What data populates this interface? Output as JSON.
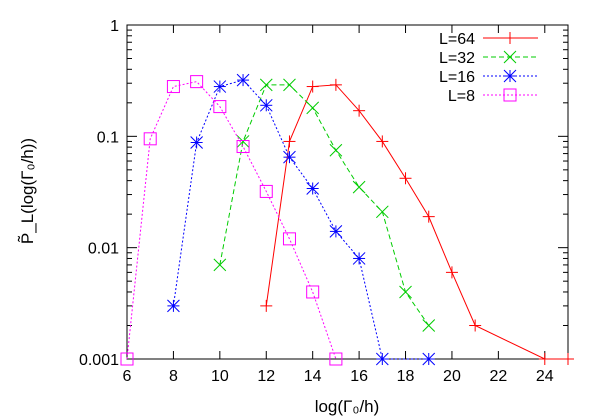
{
  "chart_data": {
    "type": "line",
    "xlabel": "log(Γ₀/h)",
    "ylabel": "P̃_L(log(Γ₀/h))",
    "xlim": [
      6,
      25
    ],
    "ylim": [
      0.001,
      1
    ],
    "yscale": "log",
    "grid": false,
    "legend_position": "top-right",
    "x_ticks": [
      6,
      8,
      10,
      12,
      14,
      16,
      18,
      20,
      22,
      24
    ],
    "x_tick_labels": [
      "6",
      "8",
      "10",
      "12",
      "14",
      "16",
      "18",
      "20",
      "22",
      "24"
    ],
    "y_ticks": [
      0.001,
      0.01,
      0.1,
      1
    ],
    "y_tick_labels": [
      "0.001",
      "0.01",
      "0.1",
      "1"
    ],
    "series": [
      {
        "name": "L=64",
        "color": "#ff0000",
        "marker": "plus",
        "dash": "solid",
        "x": [
          12,
          13,
          14,
          15,
          16,
          17,
          18,
          19,
          20,
          21,
          24,
          25
        ],
        "y": [
          0.003,
          0.09,
          0.28,
          0.29,
          0.17,
          0.09,
          0.042,
          0.019,
          0.006,
          0.002,
          0.001,
          0.001
        ]
      },
      {
        "name": "L=32",
        "color": "#00cc00",
        "marker": "cross",
        "dash": "dashed",
        "x": [
          10,
          11,
          12,
          13,
          14,
          15,
          16,
          17,
          18,
          19
        ],
        "y": [
          0.007,
          0.09,
          0.29,
          0.29,
          0.18,
          0.075,
          0.035,
          0.021,
          0.004,
          0.002
        ]
      },
      {
        "name": "L=16",
        "color": "#0000ff",
        "marker": "star",
        "dash": "dotted",
        "x": [
          8,
          9,
          10,
          11,
          12,
          13,
          14,
          15,
          16,
          17,
          19
        ],
        "y": [
          0.003,
          0.088,
          0.28,
          0.32,
          0.19,
          0.065,
          0.034,
          0.014,
          0.008,
          0.001,
          0.001
        ]
      },
      {
        "name": "L=8",
        "color": "#ff00ff",
        "marker": "square",
        "dash": "dotted",
        "x": [
          6,
          7,
          8,
          9,
          10,
          11,
          12,
          13,
          14,
          15
        ],
        "y": [
          0.001,
          0.095,
          0.28,
          0.31,
          0.185,
          0.081,
          0.032,
          0.012,
          0.004,
          0.001
        ]
      }
    ]
  }
}
